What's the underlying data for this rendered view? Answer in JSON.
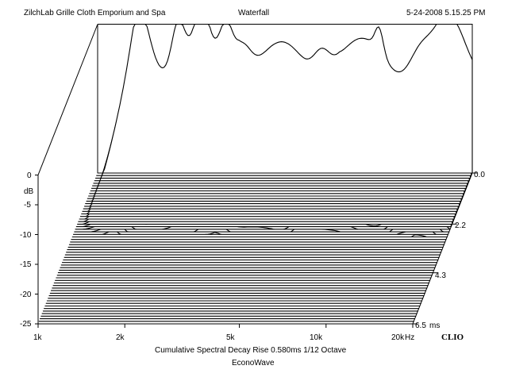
{
  "header": {
    "left": "ZilchLab Grille Cloth Emporium and Spa",
    "center": "Waterfall",
    "right": "5-24-2008 5.15.25 PM"
  },
  "footer": {
    "caption": "Cumulative Spectral Decay   Rise 0.580ms   1/12 Octave",
    "subcaption": "EconoWave"
  },
  "brand": "CLIO",
  "chart_data": {
    "type": "waterfall",
    "xscale": "log",
    "xlim": [
      1000,
      20000
    ],
    "ylim": [
      -25,
      0
    ],
    "zlim": [
      0,
      6.5
    ],
    "xlabel": "Hz",
    "ylabel": "dB",
    "zlabel": "ms",
    "x_ticks": [
      "1k",
      "2k",
      "5k",
      "10k",
      "20k"
    ],
    "y_ticks": [
      "0",
      "-5",
      "-10",
      "-15",
      "-20",
      "-25"
    ],
    "z_ticks": [
      "0.0",
      "2.2",
      "4.3",
      "6.5"
    ],
    "slices": 60,
    "approx_peaks_hz": [
      1400,
      1900,
      2300,
      2800,
      3200,
      6000,
      9500,
      13000,
      17000
    ],
    "approx_front_level_db": -7
  }
}
